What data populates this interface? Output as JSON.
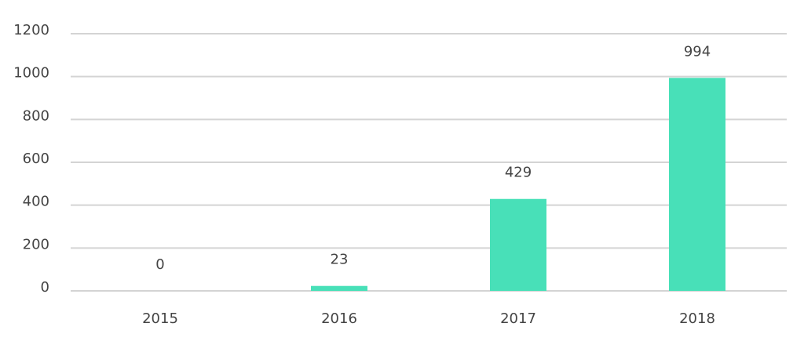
{
  "chart_data": {
    "type": "bar",
    "categories": [
      "2015",
      "2016",
      "2017",
      "2018"
    ],
    "values": [
      0,
      23,
      429,
      994
    ],
    "color": "#48e0b8",
    "ylim": [
      0,
      1200
    ],
    "yticks": [
      0,
      200,
      400,
      600,
      800,
      1000,
      1200
    ],
    "grid": true,
    "data_labels": true
  }
}
